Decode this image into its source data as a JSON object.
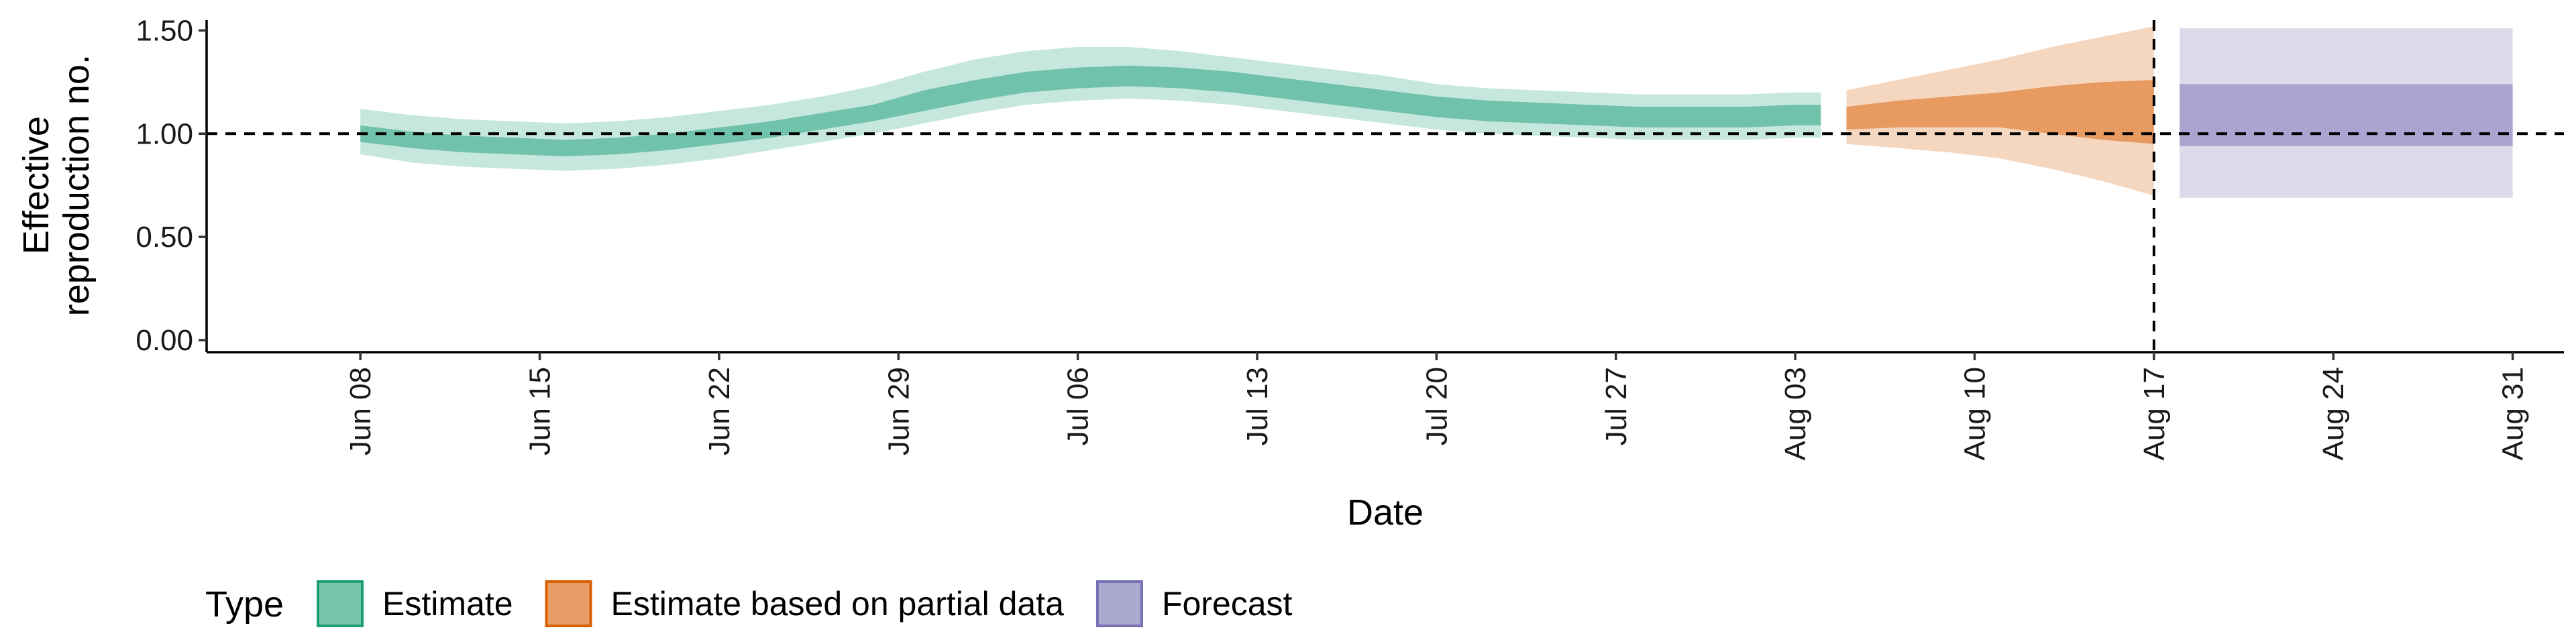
{
  "chart_data": {
    "type": "area",
    "title": "",
    "xlabel": "Date",
    "ylabel_lines": [
      "Effective",
      "reproduction no."
    ],
    "ylim": [
      0.0,
      1.55
    ],
    "yticks": [
      0.0,
      0.5,
      1.0,
      1.5
    ],
    "ytick_labels": [
      "0.00",
      "0.50",
      "1.00",
      "1.50"
    ],
    "xlim": [
      "2020-06-02",
      "2020-09-02"
    ],
    "xticks": [
      "2020-06-08",
      "2020-06-15",
      "2020-06-22",
      "2020-06-29",
      "2020-07-06",
      "2020-07-13",
      "2020-07-20",
      "2020-07-27",
      "2020-08-03",
      "2020-08-10",
      "2020-08-17",
      "2020-08-24",
      "2020-08-31"
    ],
    "xtick_labels": [
      "Jun 08",
      "Jun 15",
      "Jun 22",
      "Jun 29",
      "Jul 06",
      "Jul 13",
      "Jul 20",
      "Jul 27",
      "Aug 03",
      "Aug 10",
      "Aug 17",
      "Aug 24",
      "Aug 31"
    ],
    "reference_line_y": 1.0,
    "reference_line_x": "2020-08-17",
    "grid": false,
    "legend_position": "bottom",
    "legend_title": "Type",
    "colors": {
      "Estimate": "#1b9e77",
      "Estimate based on partial data": "#d95f02",
      "Forecast": "#7570b3"
    },
    "series": [
      {
        "name": "Estimate",
        "x": [
          "2020-06-08",
          "2020-06-10",
          "2020-06-12",
          "2020-06-14",
          "2020-06-16",
          "2020-06-18",
          "2020-06-20",
          "2020-06-22",
          "2020-06-24",
          "2020-06-26",
          "2020-06-28",
          "2020-06-30",
          "2020-07-02",
          "2020-07-04",
          "2020-07-06",
          "2020-07-08",
          "2020-07-10",
          "2020-07-12",
          "2020-07-14",
          "2020-07-16",
          "2020-07-18",
          "2020-07-20",
          "2020-07-22",
          "2020-07-24",
          "2020-07-26",
          "2020-07-28",
          "2020-07-30",
          "2020-08-01",
          "2020-08-03",
          "2020-08-04"
        ],
        "median": [
          1.0,
          0.97,
          0.95,
          0.94,
          0.93,
          0.94,
          0.96,
          0.99,
          1.02,
          1.06,
          1.1,
          1.16,
          1.21,
          1.25,
          1.27,
          1.28,
          1.27,
          1.25,
          1.22,
          1.19,
          1.16,
          1.13,
          1.11,
          1.1,
          1.09,
          1.08,
          1.08,
          1.08,
          1.09,
          1.09
        ],
        "lower_50": [
          0.96,
          0.93,
          0.91,
          0.9,
          0.89,
          0.9,
          0.92,
          0.95,
          0.98,
          1.02,
          1.06,
          1.11,
          1.16,
          1.2,
          1.22,
          1.23,
          1.22,
          1.2,
          1.17,
          1.14,
          1.11,
          1.08,
          1.06,
          1.05,
          1.04,
          1.03,
          1.03,
          1.03,
          1.04,
          1.04
        ],
        "upper_50": [
          1.04,
          1.01,
          0.99,
          0.98,
          0.97,
          0.98,
          1.0,
          1.03,
          1.06,
          1.1,
          1.14,
          1.21,
          1.26,
          1.3,
          1.32,
          1.33,
          1.32,
          1.3,
          1.27,
          1.24,
          1.21,
          1.18,
          1.16,
          1.15,
          1.14,
          1.13,
          1.13,
          1.13,
          1.14,
          1.14
        ],
        "lower_90": [
          0.9,
          0.86,
          0.84,
          0.83,
          0.82,
          0.83,
          0.85,
          0.88,
          0.92,
          0.96,
          1.0,
          1.05,
          1.1,
          1.14,
          1.16,
          1.17,
          1.16,
          1.14,
          1.11,
          1.08,
          1.05,
          1.02,
          1.0,
          0.99,
          0.98,
          0.97,
          0.97,
          0.97,
          0.98,
          0.98
        ],
        "upper_90": [
          1.12,
          1.09,
          1.07,
          1.06,
          1.05,
          1.06,
          1.08,
          1.11,
          1.14,
          1.18,
          1.23,
          1.3,
          1.36,
          1.4,
          1.42,
          1.42,
          1.4,
          1.37,
          1.34,
          1.31,
          1.28,
          1.24,
          1.22,
          1.21,
          1.2,
          1.19,
          1.19,
          1.19,
          1.2,
          1.2
        ]
      },
      {
        "name": "Estimate based on partial data",
        "x": [
          "2020-08-05",
          "2020-08-07",
          "2020-08-09",
          "2020-08-11",
          "2020-08-13",
          "2020-08-15",
          "2020-08-17"
        ],
        "median": [
          1.08,
          1.1,
          1.11,
          1.12,
          1.12,
          1.12,
          1.13
        ],
        "lower_50": [
          1.02,
          1.03,
          1.03,
          1.03,
          1.0,
          0.97,
          0.95
        ],
        "upper_50": [
          1.13,
          1.16,
          1.18,
          1.2,
          1.23,
          1.25,
          1.26
        ],
        "lower_90": [
          0.95,
          0.93,
          0.91,
          0.88,
          0.83,
          0.77,
          0.7
        ],
        "upper_90": [
          1.21,
          1.26,
          1.31,
          1.36,
          1.42,
          1.47,
          1.52
        ]
      },
      {
        "name": "Forecast",
        "x": [
          "2020-08-18",
          "2020-08-31"
        ],
        "median": [
          1.09,
          1.09
        ],
        "lower_50": [
          0.94,
          0.94
        ],
        "upper_50": [
          1.24,
          1.24
        ],
        "lower_90": [
          0.69,
          0.69
        ],
        "upper_90": [
          1.51,
          1.51
        ]
      }
    ]
  }
}
